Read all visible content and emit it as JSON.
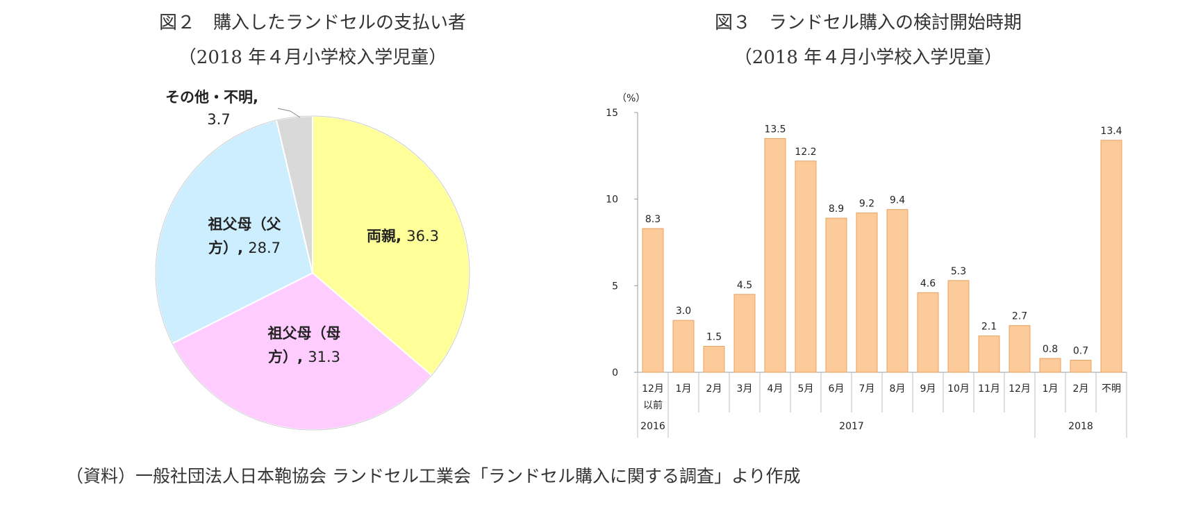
{
  "figures": {
    "fig2": {
      "title": "図２　購入したランドセルの支払い者",
      "subtitle": "（2018 年４月小学校入学児童）"
    },
    "fig3": {
      "title": "図３　ランドセル購入の検討開始時期",
      "subtitle": "（2018 年４月小学校入学児童）"
    }
  },
  "source": "（資料）一般社団法人日本鞄協会 ランドセル工業会「ランドセル購入に関する調査」より作成",
  "chart_data": [
    {
      "type": "pie",
      "title": "図２　購入したランドセルの支払い者",
      "subtitle": "（2018 年４月小学校入学児童）",
      "slices": [
        {
          "label": "両親",
          "value": 36.3,
          "color": "#FFFF99",
          "label_lines": [
            "両親"
          ]
        },
        {
          "label": "祖父母（母方）",
          "value": 31.3,
          "color": "#FFCCFF",
          "label_lines": [
            "祖父母（母",
            "方）"
          ]
        },
        {
          "label": "祖父母（父方）",
          "value": 28.7,
          "color": "#CCEEFF",
          "label_lines": [
            "祖父母（父",
            "方）"
          ]
        },
        {
          "label": "その他・不明",
          "value": 3.7,
          "color": "#D9D9D9",
          "label_lines": [
            "その他・不明,"
          ]
        }
      ],
      "value_texts": [
        "36.3",
        "31.3",
        "28.7",
        "3.7"
      ]
    },
    {
      "type": "bar",
      "title": "図３　ランドセル購入の検討開始時期",
      "subtitle": "（2018 年４月小学校入学児童）",
      "ylabel": "（%）",
      "ylim": [
        0,
        15
      ],
      "yticks": [
        "0",
        "5",
        "10",
        "15"
      ],
      "grid": false,
      "bar_color": "#FCCB99",
      "bar_edge_color": "#E8A060",
      "categories": [
        "12月以前",
        "1月",
        "2月",
        "3月",
        "4月",
        "5月",
        "6月",
        "7月",
        "8月",
        "9月",
        "10月",
        "11月",
        "12月",
        "1月",
        "2月",
        "不明"
      ],
      "category_lines": [
        [
          "12月",
          "以前"
        ],
        [
          "1月"
        ],
        [
          "2月"
        ],
        [
          "3月"
        ],
        [
          "4月"
        ],
        [
          "5月"
        ],
        [
          "6月"
        ],
        [
          "7月"
        ],
        [
          "8月"
        ],
        [
          "9月"
        ],
        [
          "10月"
        ],
        [
          "11月"
        ],
        [
          "12月"
        ],
        [
          "1月"
        ],
        [
          "2月"
        ],
        [
          "不明"
        ]
      ],
      "values": [
        8.3,
        3.0,
        1.5,
        4.5,
        13.5,
        12.2,
        8.9,
        9.2,
        9.4,
        4.6,
        5.3,
        2.1,
        2.7,
        0.8,
        0.7,
        13.4
      ],
      "value_labels": [
        "8.3",
        "3.0",
        "1.5",
        "4.5",
        "13.5",
        "12.2",
        "8.9",
        "9.2",
        "9.4",
        "4.6",
        "5.3",
        "2.1",
        "2.7",
        "0.8",
        "0.7",
        "13.4"
      ],
      "year_groups": [
        {
          "label": "2016",
          "start": 0,
          "end": 0
        },
        {
          "label": "2017",
          "start": 1,
          "end": 12
        },
        {
          "label": "2018",
          "start": 13,
          "end": 15
        }
      ]
    }
  ]
}
